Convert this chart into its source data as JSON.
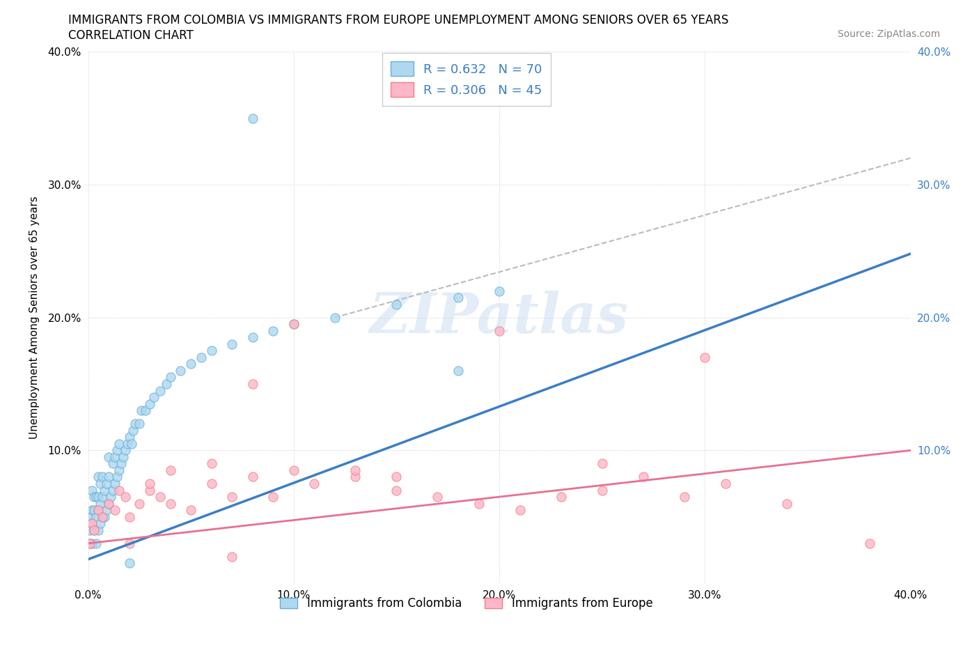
{
  "title_line1": "IMMIGRANTS FROM COLOMBIA VS IMMIGRANTS FROM EUROPE UNEMPLOYMENT AMONG SENIORS OVER 65 YEARS",
  "title_line2": "CORRELATION CHART",
  "source": "Source: ZipAtlas.com",
  "ylabel": "Unemployment Among Seniors over 65 years",
  "xlim": [
    0.0,
    0.4
  ],
  "ylim": [
    0.0,
    0.4
  ],
  "watermark": "ZIPatlas",
  "colombia_fill_color": "#ADD8F0",
  "colombia_edge_color": "#6BAED6",
  "europe_fill_color": "#FFB6C8",
  "europe_edge_color": "#F08080",
  "colombia_line_color": "#3A7EC6",
  "europe_line_color": "#E87090",
  "R_colombia": 0.632,
  "N_colombia": 70,
  "R_europe": 0.306,
  "N_europe": 45,
  "colombia_line_x": [
    0.0,
    0.4
  ],
  "colombia_line_y": [
    0.018,
    0.248
  ],
  "europe_line_x": [
    0.0,
    0.4
  ],
  "europe_line_y": [
    0.03,
    0.1
  ],
  "dash_line_x": [
    0.12,
    0.4
  ],
  "dash_line_y": [
    0.2,
    0.32
  ],
  "colombia_x": [
    0.001,
    0.001,
    0.001,
    0.002,
    0.002,
    0.002,
    0.002,
    0.003,
    0.003,
    0.003,
    0.004,
    0.004,
    0.004,
    0.005,
    0.005,
    0.005,
    0.005,
    0.006,
    0.006,
    0.006,
    0.007,
    0.007,
    0.007,
    0.008,
    0.008,
    0.009,
    0.009,
    0.01,
    0.01,
    0.01,
    0.011,
    0.012,
    0.012,
    0.013,
    0.013,
    0.014,
    0.014,
    0.015,
    0.015,
    0.016,
    0.017,
    0.018,
    0.019,
    0.02,
    0.021,
    0.022,
    0.023,
    0.025,
    0.026,
    0.028,
    0.03,
    0.032,
    0.035,
    0.038,
    0.04,
    0.045,
    0.05,
    0.055,
    0.06,
    0.07,
    0.08,
    0.09,
    0.1,
    0.12,
    0.15,
    0.18,
    0.2,
    0.18,
    0.08,
    0.02
  ],
  "colombia_y": [
    0.03,
    0.04,
    0.05,
    0.03,
    0.045,
    0.055,
    0.07,
    0.04,
    0.055,
    0.065,
    0.03,
    0.05,
    0.065,
    0.04,
    0.055,
    0.065,
    0.08,
    0.045,
    0.06,
    0.075,
    0.05,
    0.065,
    0.08,
    0.05,
    0.07,
    0.055,
    0.075,
    0.06,
    0.08,
    0.095,
    0.065,
    0.07,
    0.09,
    0.075,
    0.095,
    0.08,
    0.1,
    0.085,
    0.105,
    0.09,
    0.095,
    0.1,
    0.105,
    0.11,
    0.105,
    0.115,
    0.12,
    0.12,
    0.13,
    0.13,
    0.135,
    0.14,
    0.145,
    0.15,
    0.155,
    0.16,
    0.165,
    0.17,
    0.175,
    0.18,
    0.185,
    0.19,
    0.195,
    0.2,
    0.21,
    0.215,
    0.22,
    0.16,
    0.35,
    0.015
  ],
  "europe_x": [
    0.001,
    0.002,
    0.003,
    0.005,
    0.007,
    0.01,
    0.013,
    0.015,
    0.018,
    0.02,
    0.025,
    0.03,
    0.035,
    0.04,
    0.05,
    0.06,
    0.07,
    0.08,
    0.09,
    0.1,
    0.11,
    0.13,
    0.15,
    0.17,
    0.19,
    0.21,
    0.23,
    0.25,
    0.27,
    0.29,
    0.08,
    0.1,
    0.2,
    0.15,
    0.31,
    0.34,
    0.38,
    0.3,
    0.06,
    0.04,
    0.02,
    0.03,
    0.25,
    0.13,
    0.07
  ],
  "europe_y": [
    0.03,
    0.045,
    0.04,
    0.055,
    0.05,
    0.06,
    0.055,
    0.07,
    0.065,
    0.05,
    0.06,
    0.07,
    0.065,
    0.06,
    0.055,
    0.075,
    0.065,
    0.08,
    0.065,
    0.085,
    0.075,
    0.08,
    0.07,
    0.065,
    0.06,
    0.055,
    0.065,
    0.07,
    0.08,
    0.065,
    0.15,
    0.195,
    0.19,
    0.08,
    0.075,
    0.06,
    0.03,
    0.17,
    0.09,
    0.085,
    0.03,
    0.075,
    0.09,
    0.085,
    0.02
  ]
}
